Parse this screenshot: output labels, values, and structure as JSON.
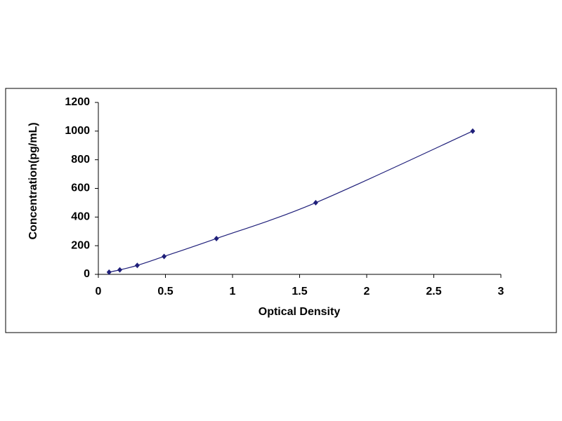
{
  "chart_data": {
    "type": "scatter",
    "x_label": "Optical Density",
    "y_label": "Concentration(pg/mL)",
    "series": [
      {
        "color": "#1f1f7a",
        "x": [
          0.08,
          0.16,
          0.29,
          0.49,
          0.88,
          1.62,
          2.79
        ],
        "values": [
          15.6,
          31.2,
          62.5,
          125,
          250,
          500,
          1000
        ]
      }
    ],
    "xlim": [
      0,
      3
    ],
    "xticks": [
      0,
      0.5,
      1,
      1.5,
      2,
      2.5,
      3
    ],
    "ylim": [
      0,
      1200
    ],
    "yticks": [
      0,
      200,
      400,
      600,
      800,
      1000,
      1200
    ],
    "grid": false,
    "smooth_line": true
  }
}
